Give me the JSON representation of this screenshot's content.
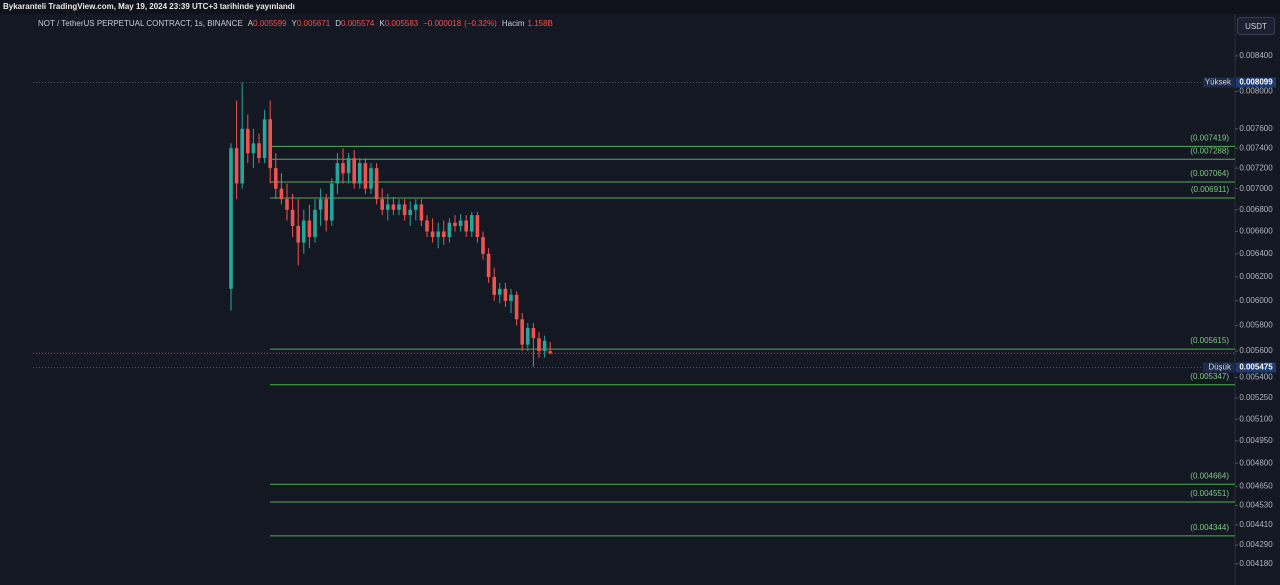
{
  "chart_data": {
    "type": "candlestick",
    "credit": "Bykaranteli TradingView.com, May 19, 2024 23:39 UTC+3 tarihinde yayınlandı",
    "symbol": "NOT / TetherUS PERPETUAL CONTRACT, 1s, BINANCE",
    "ohlc_legend": [
      {
        "prefix": "A",
        "value": 0.005599,
        "label": "0.005599"
      },
      {
        "prefix": "Y",
        "value": 0.005671,
        "label": "0.005671"
      },
      {
        "prefix": "D",
        "value": 0.005574,
        "label": "0.005574"
      },
      {
        "prefix": "K",
        "value": 0.005583,
        "label": "0.005583"
      }
    ],
    "change": {
      "value": -1.8e-05,
      "label": "−0.000018"
    },
    "change_pct": {
      "value": -0.32,
      "label": "(−0.32%)"
    },
    "volume_name": "Hacim",
    "volume": {
      "value": 1158000000,
      "label": "1.158B"
    },
    "currency_button": "USDT",
    "log_scale": true,
    "up_color": "#26a69a",
    "down_color": "#ef5350",
    "level_color": "#4caf50",
    "ylim": [
      0.004117,
      0.008886
    ],
    "yticks": [
      {
        "value": 0.0084,
        "label": "0.008400"
      },
      {
        "value": 0.008,
        "label": "0.008000"
      },
      {
        "value": 0.0076,
        "label": "0.007600"
      },
      {
        "value": 0.0074,
        "label": "0.007400"
      },
      {
        "value": 0.0072,
        "label": "0.007200"
      },
      {
        "value": 0.007,
        "label": "0.007000"
      },
      {
        "value": 0.0068,
        "label": "0.006800"
      },
      {
        "value": 0.0066,
        "label": "0.006600"
      },
      {
        "value": 0.0064,
        "label": "0.006400"
      },
      {
        "value": 0.0062,
        "label": "0.006200"
      },
      {
        "value": 0.006,
        "label": "0.006000"
      },
      {
        "value": 0.0058,
        "label": "0.005800"
      },
      {
        "value": 0.0056,
        "label": "0.005600"
      },
      {
        "value": 0.0054,
        "label": "0.005400"
      },
      {
        "value": 0.00525,
        "label": "0.005250"
      },
      {
        "value": 0.0051,
        "label": "0.005100"
      },
      {
        "value": 0.00495,
        "label": "0.004950"
      },
      {
        "value": 0.0048,
        "label": "0.004800"
      },
      {
        "value": 0.00465,
        "label": "0.004650"
      },
      {
        "value": 0.00453,
        "label": "0.004530"
      },
      {
        "value": 0.00441,
        "label": "0.004410"
      },
      {
        "value": 0.00429,
        "label": "0.004290"
      },
      {
        "value": 0.00418,
        "label": "0.004180"
      }
    ],
    "levels": [
      {
        "value": 0.007419,
        "label": "(0.007419)"
      },
      {
        "value": 0.007288,
        "label": "(0.007288)"
      },
      {
        "value": 0.007064,
        "label": "(0.007064)"
      },
      {
        "value": 0.006911,
        "label": "(0.006911)"
      },
      {
        "value": 0.005615,
        "label": "(0.005615)"
      },
      {
        "value": 0.005347,
        "label": "(0.005347)"
      },
      {
        "value": 0.004664,
        "label": "(0.004664)"
      },
      {
        "value": 0.004551,
        "label": "(0.004551)"
      },
      {
        "value": 0.004344,
        "label": "(0.004344)"
      }
    ],
    "high_marker": {
      "name": "Yüksek",
      "value": 0.008099,
      "label": "0.008099"
    },
    "low_marker": {
      "name": "Düşük",
      "value": 0.005475,
      "label": "0.005475"
    },
    "open": [
      0.0061,
      0.0074,
      0.00705,
      0.0076,
      0.00735,
      0.00745,
      0.0073,
      0.0077,
      0.0072,
      0.007,
      0.0069,
      0.0068,
      0.00665,
      0.0065,
      0.0067,
      0.00655,
      0.0068,
      0.0069,
      0.0067,
      0.00705,
      0.00725,
      0.00715,
      0.0073,
      0.00705,
      0.00725,
      0.007,
      0.0072,
      0.0069,
      0.0068,
      0.00685,
      0.0068,
      0.00685,
      0.00675,
      0.0068,
      0.00685,
      0.0067,
      0.0066,
      0.00655,
      0.0066,
      0.00655,
      0.00668,
      0.00665,
      0.0067,
      0.0066,
      0.00675,
      0.00655,
      0.0064,
      0.0062,
      0.00605,
      0.0061,
      0.006,
      0.00605,
      0.00585,
      0.00565,
      0.00578,
      0.0057,
      0.0056,
      0.005599
    ],
    "high": [
      0.00745,
      0.0079,
      0.0081,
      0.00775,
      0.0076,
      0.00755,
      0.0078,
      0.0079,
      0.00735,
      0.00715,
      0.00705,
      0.00695,
      0.0069,
      0.0068,
      0.00685,
      0.0069,
      0.007,
      0.00695,
      0.0071,
      0.00735,
      0.0074,
      0.00735,
      0.00738,
      0.0073,
      0.0073,
      0.00725,
      0.00725,
      0.007,
      0.00695,
      0.00692,
      0.0069,
      0.0069,
      0.00688,
      0.0069,
      0.0069,
      0.00675,
      0.00672,
      0.00668,
      0.0067,
      0.00672,
      0.00675,
      0.00676,
      0.00675,
      0.00678,
      0.00678,
      0.0066,
      0.00645,
      0.00628,
      0.00615,
      0.00615,
      0.0061,
      0.00608,
      0.0059,
      0.00582,
      0.00582,
      0.00575,
      0.00572,
      0.005671
    ],
    "low": [
      0.00592,
      0.0069,
      0.007,
      0.00725,
      0.0072,
      0.00725,
      0.00725,
      0.00705,
      0.0069,
      0.00685,
      0.0067,
      0.00655,
      0.0063,
      0.0064,
      0.00645,
      0.0065,
      0.00665,
      0.0066,
      0.00665,
      0.00695,
      0.00705,
      0.00705,
      0.007,
      0.007,
      0.00695,
      0.00695,
      0.00685,
      0.00675,
      0.0067,
      0.00675,
      0.00675,
      0.0067,
      0.00665,
      0.0067,
      0.00665,
      0.00655,
      0.0065,
      0.00645,
      0.00648,
      0.0065,
      0.0066,
      0.0066,
      0.00655,
      0.00655,
      0.0065,
      0.00635,
      0.00615,
      0.006,
      0.00598,
      0.00595,
      0.0059,
      0.0058,
      0.0056,
      0.0056,
      0.00548,
      0.00555,
      0.00555,
      0.005574
    ],
    "close": [
      0.0074,
      0.00705,
      0.0076,
      0.00735,
      0.00745,
      0.0073,
      0.0077,
      0.0072,
      0.007,
      0.0069,
      0.0068,
      0.00665,
      0.0065,
      0.0067,
      0.00655,
      0.0068,
      0.0069,
      0.0067,
      0.00705,
      0.00725,
      0.00715,
      0.0073,
      0.00705,
      0.00725,
      0.007,
      0.0072,
      0.0069,
      0.0068,
      0.00685,
      0.0068,
      0.00685,
      0.00675,
      0.0068,
      0.00685,
      0.0067,
      0.0066,
      0.00655,
      0.0066,
      0.00655,
      0.00668,
      0.00665,
      0.0067,
      0.0066,
      0.00675,
      0.00655,
      0.0064,
      0.0062,
      0.00605,
      0.0061,
      0.006,
      0.00605,
      0.00585,
      0.00565,
      0.00578,
      0.0057,
      0.0056,
      0.00568,
      0.005583
    ]
  }
}
